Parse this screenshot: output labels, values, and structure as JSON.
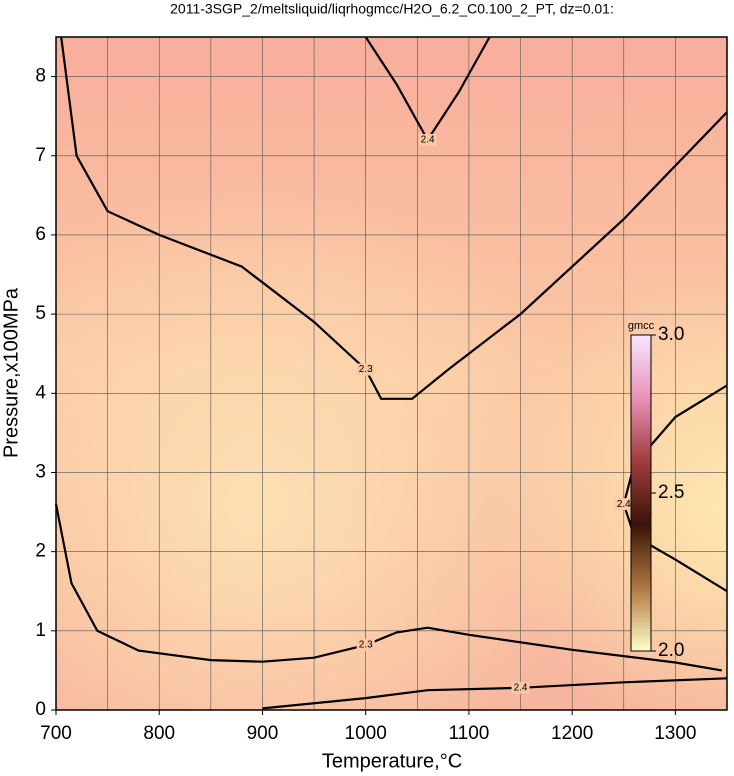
{
  "chart_data": {
    "type": "contour",
    "title": "2011-3SGP_2/meltsliquid/liqrhogmcc/H2O_6.2_C0.100_2_PT, dz=0.01:",
    "x_label": "Temperature,°C",
    "y_label": "Pressure,x100MPa",
    "xlim": [
      700,
      1350
    ],
    "ylim": [
      0,
      8.5
    ],
    "xticks": [
      700,
      800,
      900,
      1000,
      1100,
      1200,
      1300
    ],
    "yticks": [
      0,
      1,
      2,
      3,
      4,
      5,
      6,
      7,
      8
    ],
    "grid": true,
    "contours": [
      {
        "label": "2.3",
        "x": [
          705,
          720,
          750,
          800,
          880,
          950,
          1000,
          1015,
          1045,
          1080,
          1150,
          1250,
          1350
        ],
        "y": [
          8.5,
          7.0,
          6.3,
          6.0,
          5.6,
          4.9,
          4.3,
          3.93,
          3.93,
          4.3,
          5.0,
          6.2,
          7.55
        ]
      },
      {
        "label": "2.4",
        "x": [
          1000,
          1030,
          1060,
          1090,
          1120
        ],
        "y": [
          8.5,
          7.9,
          7.2,
          7.8,
          8.5
        ]
      },
      {
        "label": "2.3",
        "x": [
          700,
          715,
          740,
          780,
          850,
          900,
          950,
          1000,
          1030,
          1060,
          1100,
          1200,
          1300,
          1345
        ],
        "y": [
          2.6,
          1.6,
          1.0,
          0.75,
          0.63,
          0.61,
          0.66,
          0.82,
          0.98,
          1.04,
          0.95,
          0.76,
          0.6,
          0.5
        ]
      },
      {
        "label": "2.4",
        "x": [
          900,
          1000,
          1060,
          1150,
          1250,
          1350
        ],
        "y": [
          0.02,
          0.15,
          0.25,
          0.28,
          0.35,
          0.4
        ]
      },
      {
        "label": "2.4",
        "x": [
          1350,
          1300,
          1260,
          1250,
          1260,
          1300,
          1350
        ],
        "y": [
          1.5,
          1.9,
          2.2,
          2.6,
          3.1,
          3.7,
          4.1
        ]
      }
    ],
    "colorbar": {
      "label": "gmcc",
      "lim": [
        2.0,
        3.0
      ],
      "ticks": [
        {
          "value": 3.0,
          "label": "3.0"
        },
        2.5,
        {
          "value": 2.0,
          "label": "2.0"
        }
      ],
      "colors": [
        "#ffffc8",
        "#b07840",
        "#3a1408",
        "#a03c3c",
        "#e890b8",
        "#f8e8ff"
      ]
    }
  }
}
